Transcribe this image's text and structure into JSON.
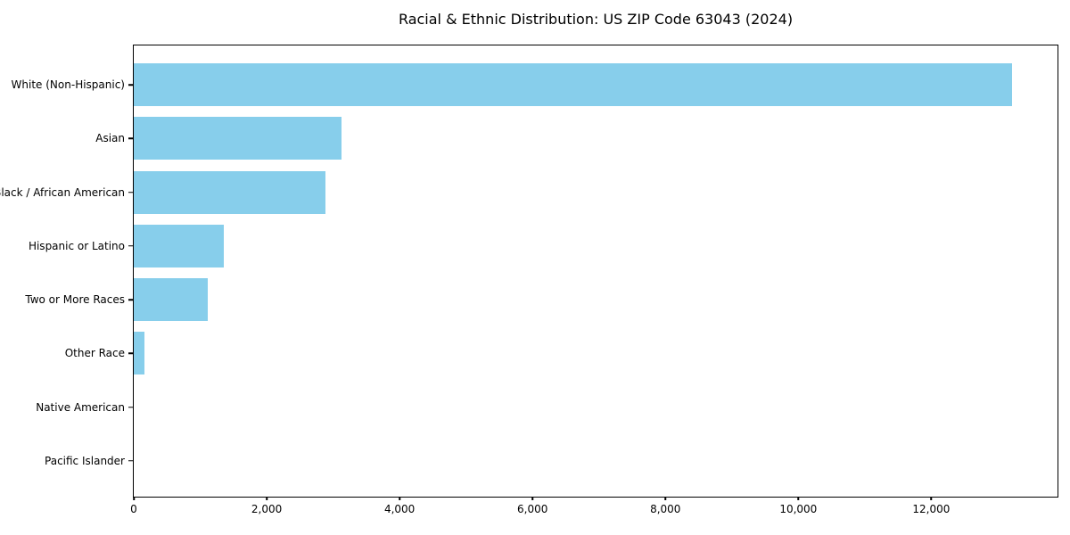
{
  "chart_data": {
    "type": "bar",
    "orientation": "horizontal",
    "title": "Racial & Ethnic Distribution: US ZIP Code 63043 (2024)",
    "categories": [
      "White (Non-Hispanic)",
      "Asian",
      "Black / African American",
      "Hispanic or Latino",
      "Two or More Races",
      "Other Race",
      "Native American",
      "Pacific Islander"
    ],
    "values": [
      13220,
      3120,
      2890,
      1360,
      1110,
      160,
      0,
      0
    ],
    "xlabel": "",
    "ylabel": "",
    "xlim": [
      0,
      13900
    ],
    "x_ticks": [
      0,
      2000,
      4000,
      6000,
      8000,
      10000,
      12000
    ],
    "x_tick_labels": [
      "0",
      "2,000",
      "4,000",
      "6,000",
      "8,000",
      "10,000",
      "12,000"
    ],
    "bar_color": "#87CEEB",
    "axis_color": "#000000",
    "background_color": "#FFFFFF",
    "grid": false,
    "legend": null
  }
}
